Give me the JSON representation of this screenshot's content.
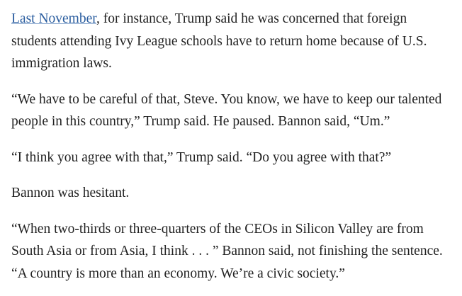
{
  "paragraphs": [
    {
      "link": "Last November",
      "lines": [
        ", for instance, Trump said he was concerned that foreign",
        "students attending Ivy League schools have to return home because of U.S.",
        "immigration laws."
      ]
    },
    {
      "lines": [
        "“We have to be careful of that, Steve. You know, we have to keep our talented",
        "people in this country,” Trump said. He paused. Bannon said, “Um.”"
      ]
    },
    {
      "lines": [
        "“I think you agree with that,” Trump said. “Do you agree with that?”"
      ]
    },
    {
      "lines": [
        "Bannon was hesitant."
      ]
    },
    {
      "lines": [
        "“When two-thirds or three-quarters of the CEOs in Silicon Valley are from",
        "South Asia or from Asia, I think . . . ” Bannon said, not finishing the sentence.",
        "“A country is more than an economy. We’re a civic society.”"
      ]
    }
  ]
}
